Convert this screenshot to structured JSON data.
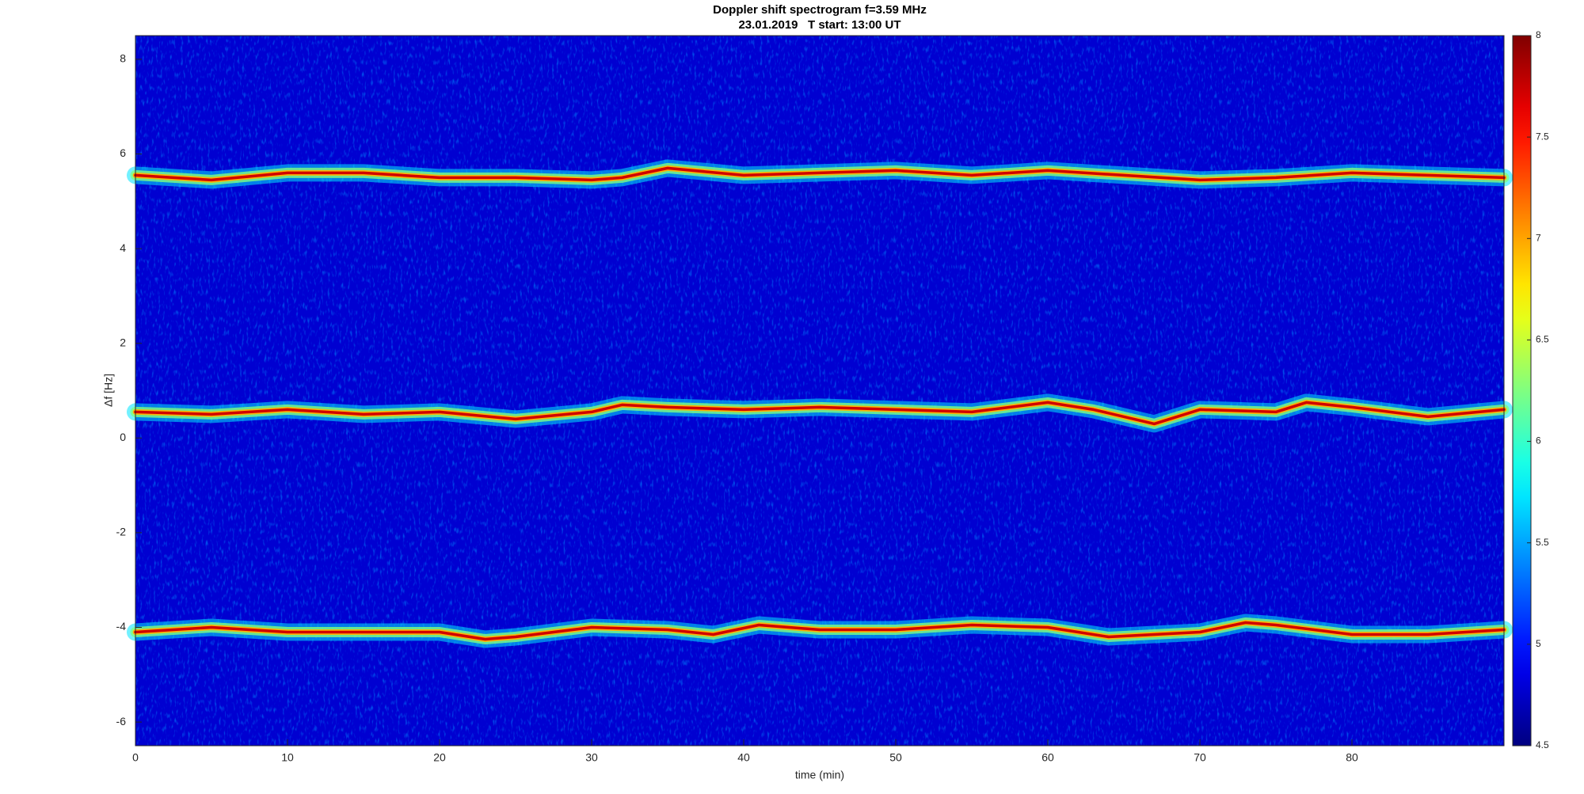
{
  "chart_data": {
    "type": "spectrogram",
    "title": "Doppler shift spectrogram f=3.59 MHz",
    "subtitle": "23.01.2019   T start: 13:00 UT",
    "x_label": "time (min)",
    "y_label": "Δf [Hz]",
    "colormap": "jet",
    "xlim": [
      0,
      90
    ],
    "ylim": [
      -6.5,
      8.5
    ],
    "xticks": [
      0,
      10,
      20,
      30,
      40,
      50,
      60,
      70,
      80
    ],
    "yticks": [
      -6,
      -4,
      -2,
      0,
      2,
      4,
      6,
      8
    ],
    "colorbar_lim": [
      4.5,
      8
    ],
    "colorbar_ticks": [
      4.5,
      5,
      5.5,
      6,
      6.5,
      7,
      7.5,
      8
    ],
    "traces": [
      {
        "x": [
          0,
          5,
          10,
          15,
          20,
          25,
          30,
          32,
          35,
          40,
          45,
          50,
          55,
          60,
          65,
          70,
          75,
          80,
          85,
          90
        ],
        "values": [
          5.55,
          5.45,
          5.6,
          5.6,
          5.5,
          5.5,
          5.45,
          5.5,
          5.7,
          5.55,
          5.6,
          5.65,
          5.55,
          5.65,
          5.55,
          5.45,
          5.5,
          5.6,
          5.55,
          5.5
        ]
      },
      {
        "x": [
          0,
          5,
          10,
          15,
          20,
          25,
          30,
          32,
          35,
          40,
          45,
          50,
          55,
          60,
          63,
          67,
          70,
          75,
          77,
          80,
          85,
          90
        ],
        "values": [
          0.55,
          0.5,
          0.6,
          0.5,
          0.55,
          0.4,
          0.55,
          0.7,
          0.65,
          0.6,
          0.65,
          0.6,
          0.55,
          0.75,
          0.6,
          0.3,
          0.6,
          0.55,
          0.75,
          0.65,
          0.45,
          0.6
        ]
      },
      {
        "x": [
          0,
          5,
          10,
          15,
          20,
          23,
          25,
          30,
          35,
          38,
          41,
          45,
          50,
          55,
          60,
          64,
          70,
          73,
          75,
          80,
          85,
          90
        ],
        "values": [
          -4.1,
          -4.0,
          -4.1,
          -4.1,
          -4.1,
          -4.25,
          -4.2,
          -4.0,
          -4.05,
          -4.15,
          -3.95,
          -4.05,
          -4.05,
          -3.95,
          -4.0,
          -4.2,
          -4.1,
          -3.9,
          -3.95,
          -4.15,
          -4.15,
          -4.05
        ]
      }
    ]
  }
}
